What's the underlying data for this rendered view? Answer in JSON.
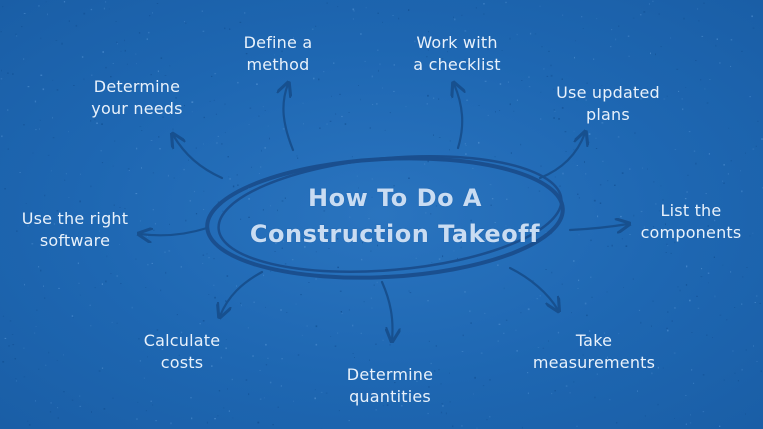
{
  "title": {
    "line1": "How To Do A",
    "line2": "Construction Takeoff"
  },
  "steps": [
    {
      "line1": "Define a",
      "line2": "method"
    },
    {
      "line1": "Work with",
      "line2": "a checklist"
    },
    {
      "line1": "Use updated",
      "line2": "plans"
    },
    {
      "line1": "List the",
      "line2": "components"
    },
    {
      "line1": "Take",
      "line2": "measurements"
    },
    {
      "line1": "Determine",
      "line2": "quantities"
    },
    {
      "line1": "Calculate",
      "line2": "costs"
    },
    {
      "line1": "Use the right",
      "line2": "software"
    },
    {
      "line1": "Determine",
      "line2": "your needs"
    }
  ],
  "colors": {
    "background": "#1e67b2",
    "text": "#e8f1fb",
    "title_text": "#c9dcf2",
    "ellipse_stroke": "#1a4f8f",
    "arrow_stroke": "#17508f"
  }
}
